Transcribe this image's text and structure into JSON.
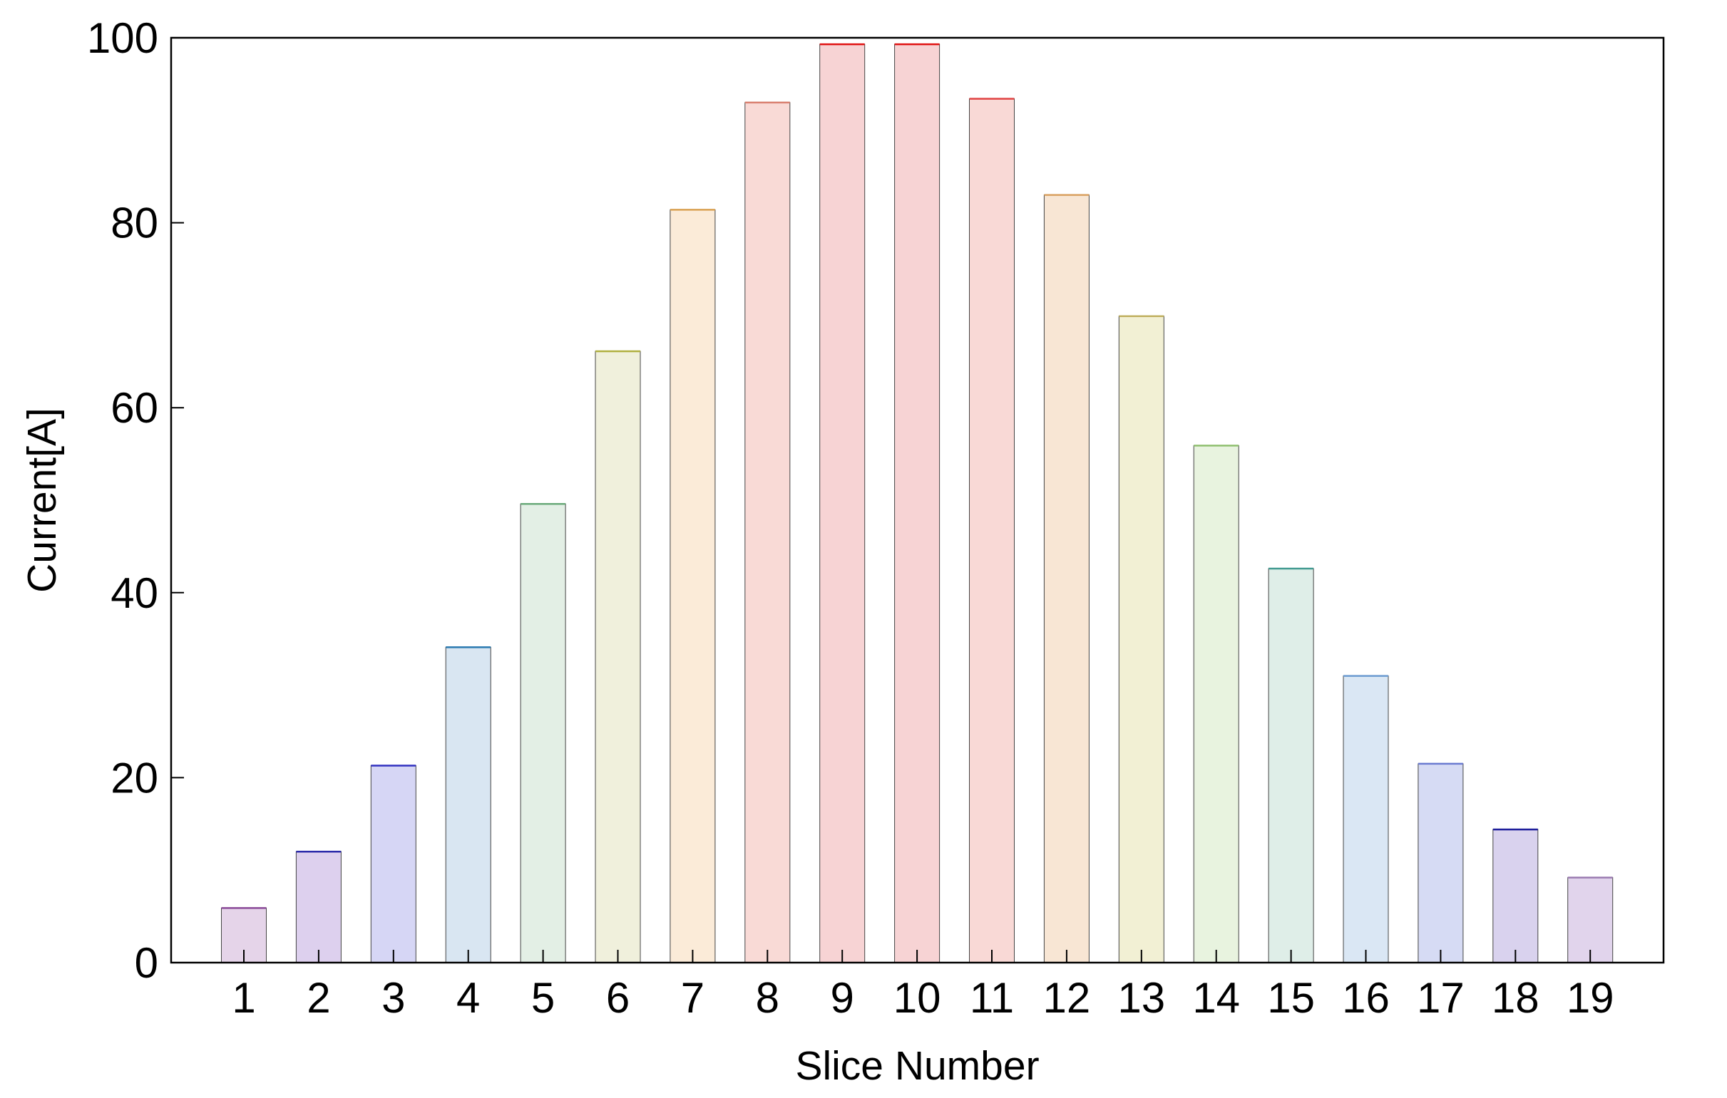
{
  "chart_data": {
    "type": "bar",
    "xlabel": "Slice Number",
    "ylabel": "Current[A]",
    "ylim": [
      0,
      100
    ],
    "yticks": [
      0,
      20,
      40,
      60,
      80,
      100
    ],
    "grid": false,
    "categories": [
      "1",
      "2",
      "3",
      "4",
      "5",
      "6",
      "7",
      "8",
      "9",
      "10",
      "11",
      "12",
      "13",
      "14",
      "15",
      "16",
      "17",
      "18",
      "19"
    ],
    "values": [
      5.9,
      12.0,
      21.3,
      34.1,
      49.6,
      66.1,
      81.4,
      93.0,
      99.3,
      99.3,
      93.4,
      83.0,
      69.9,
      55.9,
      42.6,
      31.0,
      21.5,
      14.4,
      9.2
    ],
    "bar_fill_colors": [
      "#e5d4e9",
      "#ddd0ee",
      "#d6d6f5",
      "#d9e6f2",
      "#e3efe5",
      "#f0f0dc",
      "#fbebd8",
      "#f9dad6",
      "#f7d3d4",
      "#f7d3d4",
      "#f9d9d6",
      "#f8e6d4",
      "#f2f0d4",
      "#e8f3df",
      "#dfeee8",
      "#dae7f4",
      "#d6dbf4",
      "#d9d2ee",
      "#e1d4ec"
    ],
    "bar_top_colors": [
      "#8a4a98",
      "#2a2aaa",
      "#3030c0",
      "#2a7ab0",
      "#6aaa7a",
      "#b0b040",
      "#d9a050",
      "#d98070",
      "#e01010",
      "#e01010",
      "#e04040",
      "#d9a060",
      "#c0b060",
      "#90c070",
      "#409a90",
      "#6a9ad0",
      "#6a7ad0",
      "#1a1a9a",
      "#9a7ab0"
    ]
  }
}
